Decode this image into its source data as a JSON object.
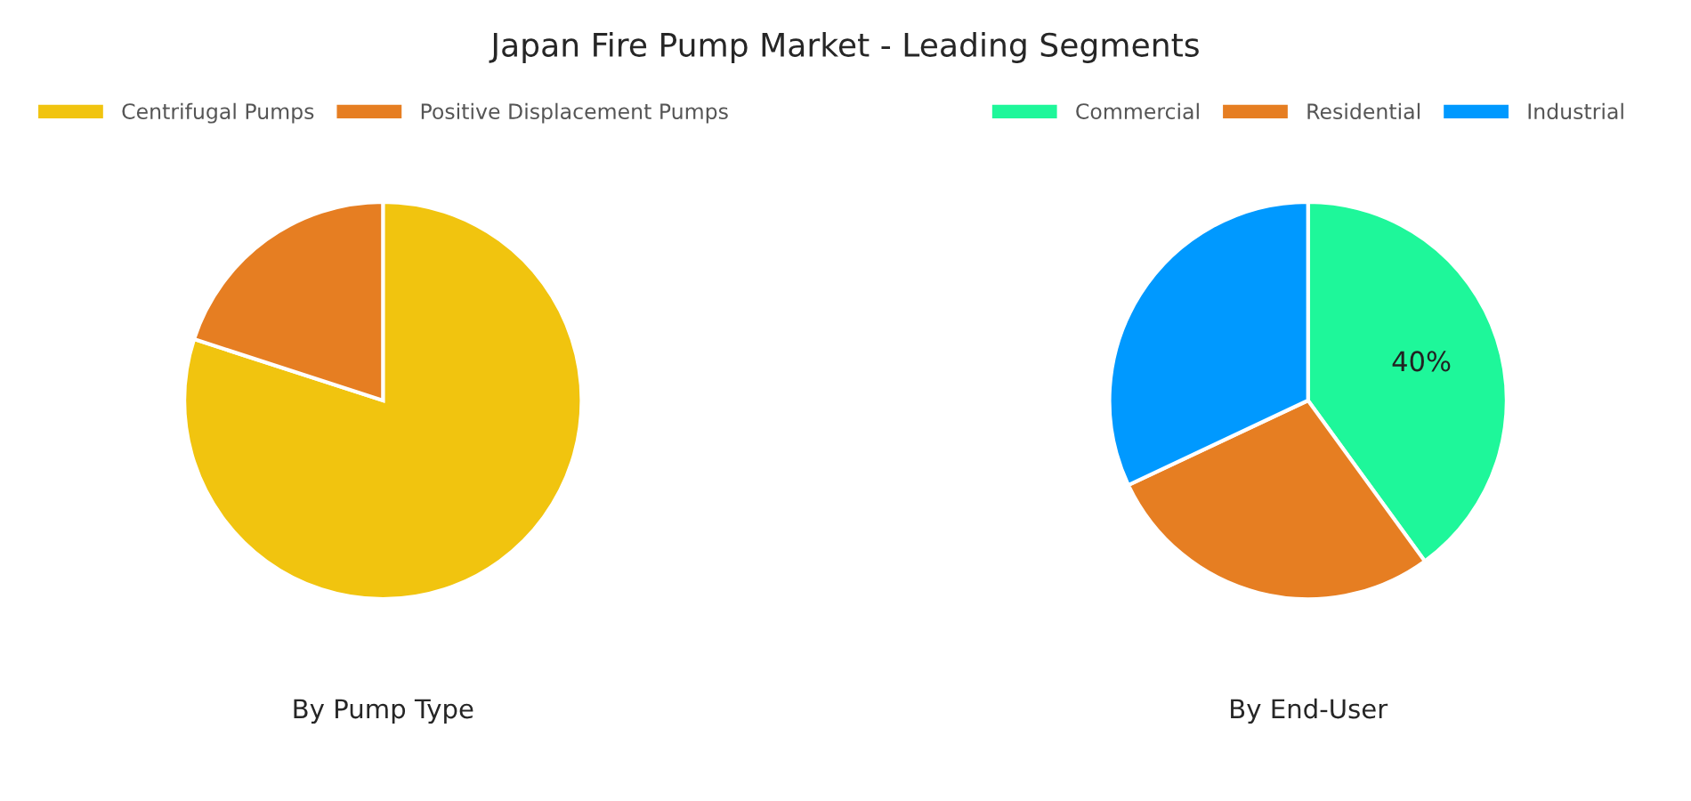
{
  "chart_data": [
    {
      "type": "pie",
      "title": "Japan Fire Pump Market - Leading Segments",
      "xlabel": "By Pump Type",
      "categories": [
        "Centrifugal Pumps",
        "Positive Displacement Pumps"
      ],
      "values": [
        80,
        20
      ],
      "colors": [
        "#f1c40f",
        "#e67e22"
      ],
      "legend": "top"
    },
    {
      "type": "pie",
      "xlabel": "By End-User",
      "categories": [
        "Commercial",
        "Residential",
        "Industrial"
      ],
      "values": [
        40,
        28,
        32
      ],
      "colors": [
        "#1ef79a",
        "#e67e22",
        "#0099ff"
      ],
      "value_labels": [
        "40%",
        null,
        null
      ],
      "legend": "top"
    }
  ]
}
